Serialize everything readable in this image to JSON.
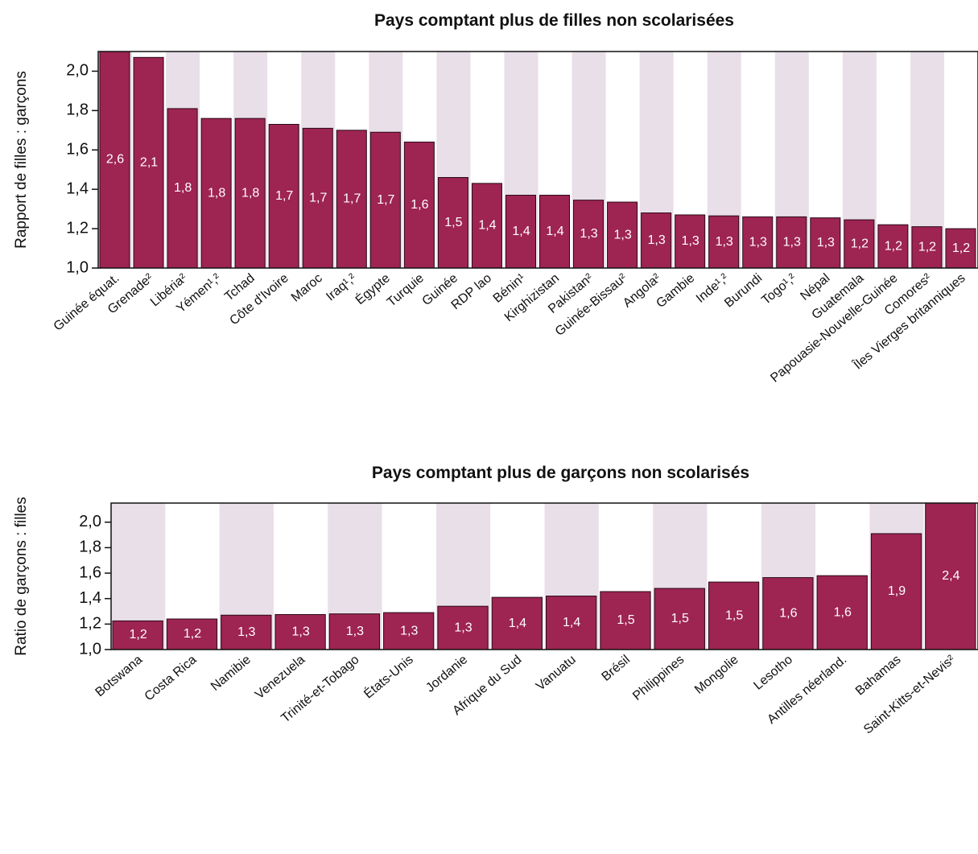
{
  "chart_data": [
    {
      "type": "bar",
      "title": "Pays comptant plus de filles non scolarisées",
      "y_label": "Rapport de filles : garçons",
      "categories": [
        "Guinée équat.",
        "Grenade²",
        "Libéria²",
        "Yémen¹,²",
        "Tchad",
        "Côte d'Ivoire",
        "Maroc",
        "Iraq¹,²",
        "Égypte",
        "Turquie",
        "Guinée",
        "RDP lao",
        "Bénin¹",
        "Kirghizistan",
        "Pakistan²",
        "Guinée-Bissau²",
        "Angola²",
        "Gambie",
        "Inde¹,²",
        "Burundi",
        "Togo¹,²",
        "Népal",
        "Guatemala",
        "Papouasie-Nouvelle-Guinée",
        "Comores²",
        "Îles Vierges britanniques"
      ],
      "values": [
        2.6,
        2.07,
        1.81,
        1.76,
        1.76,
        1.73,
        1.71,
        1.7,
        1.69,
        1.64,
        1.46,
        1.43,
        1.37,
        1.37,
        1.345,
        1.335,
        1.28,
        1.27,
        1.265,
        1.26,
        1.26,
        1.255,
        1.245,
        1.22,
        1.21,
        1.2
      ],
      "value_labels": [
        "2,6",
        "2,1",
        "1,8",
        "1,8",
        "1,8",
        "1,7",
        "1,7",
        "1,7",
        "1,7",
        "1,6",
        "1,5",
        "1,4",
        "1,4",
        "1,4",
        "1,3",
        "1,3",
        "1,3",
        "1,3",
        "1,3",
        "1,3",
        "1,3",
        "1,3",
        "1,2",
        "1,2",
        "1,2",
        "1,2"
      ],
      "color": "#9e2452",
      "ylim": [
        1.0,
        2.1
      ],
      "yticks": [
        {
          "value": 1.0,
          "label": "1,0"
        },
        {
          "value": 1.2,
          "label": "1,2"
        },
        {
          "value": 1.4,
          "label": "1,4"
        },
        {
          "value": 1.6,
          "label": "1,6"
        },
        {
          "value": 1.8,
          "label": "1,8"
        },
        {
          "value": 2.0,
          "label": "2,0"
        }
      ]
    },
    {
      "type": "bar",
      "title": "Pays comptant plus de garçons non scolarisés",
      "y_label": "Ratio de garçons : filles",
      "categories": [
        "Botswana",
        "Costa Rica",
        "Namibie",
        "Venezuela",
        "Trinité-et-Tobago",
        "États-Unis",
        "Jordanie",
        "Afrique du Sud",
        "Vanuatu",
        "Brésil",
        "Philippines",
        "Mongolie",
        "Lesotho",
        "Antilles néerland.",
        "Bahamas",
        "Saint-Kitts-et-Nevis²"
      ],
      "values": [
        1.225,
        1.24,
        1.27,
        1.275,
        1.28,
        1.29,
        1.34,
        1.41,
        1.42,
        1.455,
        1.48,
        1.53,
        1.565,
        1.58,
        1.91,
        2.4
      ],
      "value_labels": [
        "1,2",
        "1,2",
        "1,3",
        "1,3",
        "1,3",
        "1,3",
        "1,3",
        "1,4",
        "1,4",
        "1,5",
        "1,5",
        "1,5",
        "1,6",
        "1,6",
        "1,9",
        "2,4"
      ],
      "color": "#9e2452",
      "ylim": [
        1.0,
        2.15
      ],
      "yticks": [
        {
          "value": 1.0,
          "label": "1,0"
        },
        {
          "value": 1.2,
          "label": "1,2"
        },
        {
          "value": 1.4,
          "label": "1,4"
        },
        {
          "value": 1.6,
          "label": "1,6"
        },
        {
          "value": 1.8,
          "label": "1,8"
        },
        {
          "value": 2.0,
          "label": "2,0"
        }
      ]
    }
  ]
}
